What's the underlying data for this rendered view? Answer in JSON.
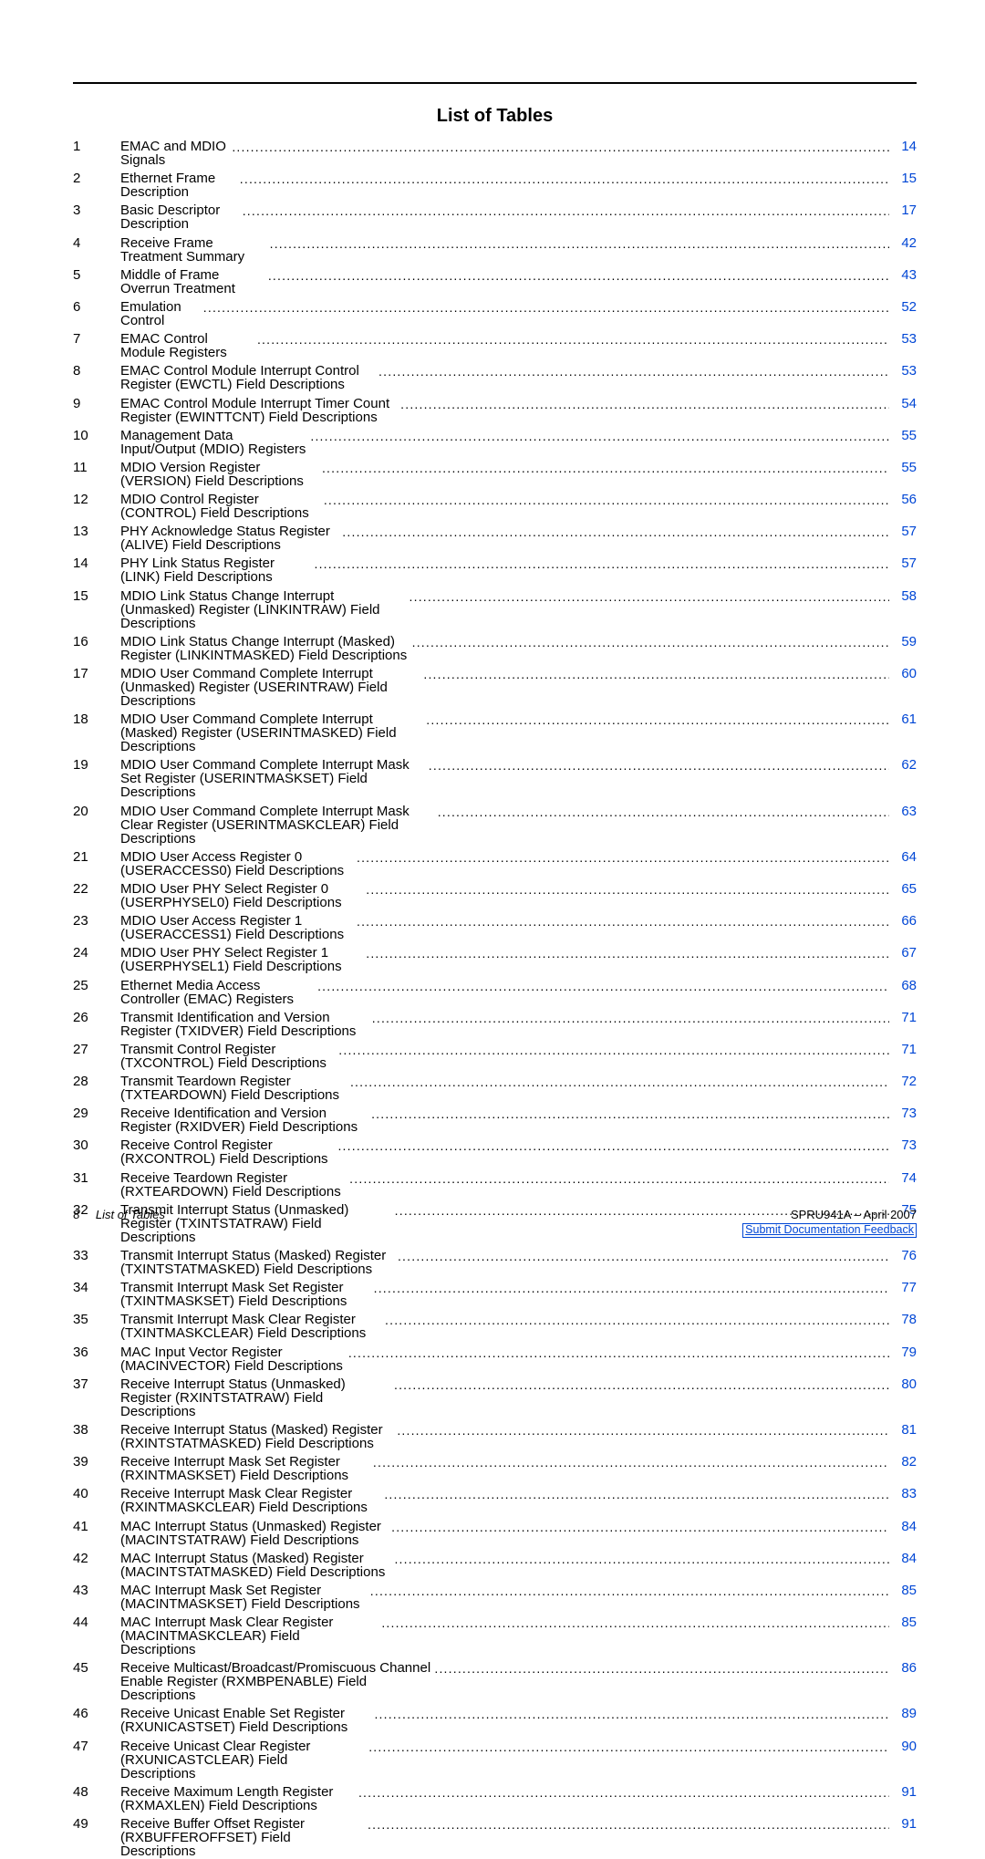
{
  "title": "List of Tables",
  "link_color": "#0046d5",
  "entries": [
    {
      "n": "1",
      "t": "EMAC and MDIO Signals",
      "p": "14"
    },
    {
      "n": "2",
      "t": "Ethernet Frame Description",
      "p": "15"
    },
    {
      "n": "3",
      "t": "Basic Descriptor Description",
      "p": "17"
    },
    {
      "n": "4",
      "t": "Receive Frame Treatment Summary",
      "p": "42"
    },
    {
      "n": "5",
      "t": "Middle of Frame Overrun Treatment",
      "p": "43"
    },
    {
      "n": "6",
      "t": "Emulation Control",
      "p": "52"
    },
    {
      "n": "7",
      "t": "EMAC Control Module Registers",
      "p": "53"
    },
    {
      "n": "8",
      "t": "EMAC Control Module Interrupt Control Register (EWCTL) Field Descriptions",
      "p": "53"
    },
    {
      "n": "9",
      "t": "EMAC Control Module Interrupt Timer Count Register (EWINTTCNT) Field Descriptions",
      "p": "54"
    },
    {
      "n": "10",
      "t": "Management Data Input/Output (MDIO) Registers",
      "p": "55"
    },
    {
      "n": "11",
      "t": "MDIO Version Register (VERSION) Field Descriptions",
      "p": "55"
    },
    {
      "n": "12",
      "t": "MDIO Control Register (CONTROL) Field Descriptions",
      "p": "56"
    },
    {
      "n": "13",
      "t": "PHY Acknowledge Status Register (ALIVE) Field Descriptions",
      "p": "57"
    },
    {
      "n": "14",
      "t": "PHY Link Status Register (LINK) Field Descriptions",
      "p": "57"
    },
    {
      "n": "15",
      "t": "MDIO Link Status Change Interrupt (Unmasked) Register (LINKINTRAW) Field Descriptions",
      "p": "58"
    },
    {
      "n": "16",
      "t": "MDIO Link Status Change Interrupt (Masked) Register (LINKINTMASKED) Field Descriptions",
      "p": "59"
    },
    {
      "n": "17",
      "t": "MDIO User Command Complete Interrupt (Unmasked) Register (USERINTRAW) Field Descriptions",
      "p": "60"
    },
    {
      "n": "18",
      "t": "MDIO User Command Complete Interrupt (Masked) Register (USERINTMASKED) Field Descriptions",
      "p": "61"
    },
    {
      "n": "19",
      "t": "MDIO User Command Complete Interrupt Mask Set Register (USERINTMASKSET) Field Descriptions",
      "p": "62"
    },
    {
      "n": "20",
      "t": "MDIO User Command Complete Interrupt Mask Clear Register (USERINTMASKCLEAR) Field Descriptions",
      "p": "63",
      "multi": true
    },
    {
      "n": "21",
      "t": "MDIO User Access Register 0 (USERACCESS0) Field Descriptions",
      "p": "64"
    },
    {
      "n": "22",
      "t": "MDIO User PHY Select Register 0 (USERPHYSEL0) Field Descriptions",
      "p": "65"
    },
    {
      "n": "23",
      "t": "MDIO User Access Register 1 (USERACCESS1) Field Descriptions",
      "p": "66"
    },
    {
      "n": "24",
      "t": "MDIO User PHY Select Register 1 (USERPHYSEL1) Field Descriptions",
      "p": "67"
    },
    {
      "n": "25",
      "t": "Ethernet Media Access Controller (EMAC) Registers",
      "p": "68"
    },
    {
      "n": "26",
      "t": "Transmit Identification and Version Register (TXIDVER) Field Descriptions",
      "p": "71"
    },
    {
      "n": "27",
      "t": "Transmit Control Register (TXCONTROL) Field Descriptions",
      "p": "71"
    },
    {
      "n": "28",
      "t": "Transmit Teardown Register (TXTEARDOWN) Field Descriptions",
      "p": "72"
    },
    {
      "n": "29",
      "t": "Receive Identification and Version Register (RXIDVER) Field Descriptions",
      "p": "73"
    },
    {
      "n": "30",
      "t": "Receive Control Register (RXCONTROL) Field Descriptions",
      "p": "73"
    },
    {
      "n": "31",
      "t": "Receive Teardown Register (RXTEARDOWN) Field Descriptions",
      "p": "74"
    },
    {
      "n": "32",
      "t": "Transmit Interrupt Status (Unmasked) Register (TXINTSTATRAW) Field Descriptions",
      "p": "75"
    },
    {
      "n": "33",
      "t": "Transmit Interrupt Status (Masked) Register (TXINTSTATMASKED) Field Descriptions",
      "p": "76"
    },
    {
      "n": "34",
      "t": "Transmit Interrupt Mask Set Register (TXINTMASKSET) Field Descriptions",
      "p": "77"
    },
    {
      "n": "35",
      "t": "Transmit Interrupt Mask Clear Register (TXINTMASKCLEAR) Field Descriptions",
      "p": "78"
    },
    {
      "n": "36",
      "t": "MAC Input Vector Register (MACINVECTOR) Field Descriptions",
      "p": "79"
    },
    {
      "n": "37",
      "t": "Receive Interrupt Status (Unmasked) Register (RXINTSTATRAW) Field Descriptions",
      "p": "80"
    },
    {
      "n": "38",
      "t": "Receive Interrupt Status (Masked) Register (RXINTSTATMASKED) Field Descriptions",
      "p": "81"
    },
    {
      "n": "39",
      "t": "Receive Interrupt Mask Set Register (RXINTMASKSET) Field Descriptions",
      "p": "82"
    },
    {
      "n": "40",
      "t": "Receive Interrupt Mask Clear Register (RXINTMASKCLEAR) Field Descriptions",
      "p": "83"
    },
    {
      "n": "41",
      "t": "MAC Interrupt Status (Unmasked) Register (MACINTSTATRAW) Field Descriptions",
      "p": "84"
    },
    {
      "n": "42",
      "t": "MAC Interrupt Status (Masked) Register (MACINTSTATMASKED) Field Descriptions",
      "p": "84"
    },
    {
      "n": "43",
      "t": "MAC Interrupt Mask Set Register (MACINTMASKSET) Field Descriptions",
      "p": "85"
    },
    {
      "n": "44",
      "t": "MAC Interrupt Mask Clear Register (MACINTMASKCLEAR) Field Descriptions",
      "p": "85"
    },
    {
      "n": "45",
      "t": "Receive Multicast/Broadcast/Promiscuous Channel Enable Register (RXMBPENABLE) Field Descriptions",
      "p": "86"
    },
    {
      "n": "46",
      "t": "Receive Unicast Enable Set Register (RXUNICASTSET) Field Descriptions",
      "p": "89"
    },
    {
      "n": "47",
      "t": "Receive Unicast Clear Register (RXUNICASTCLEAR) Field Descriptions",
      "p": "90"
    },
    {
      "n": "48",
      "t": "Receive Maximum Length Register (RXMAXLEN) Field Descriptions",
      "p": "91"
    },
    {
      "n": "49",
      "t": "Receive Buffer Offset Register (RXBUFFEROFFSET) Field Descriptions",
      "p": "91"
    }
  ],
  "footer": {
    "page_number": "8",
    "section_title": "List of Tables",
    "doc_id": "SPRU941A – April 2007",
    "feedback_link": "Submit Documentation Feedback"
  }
}
